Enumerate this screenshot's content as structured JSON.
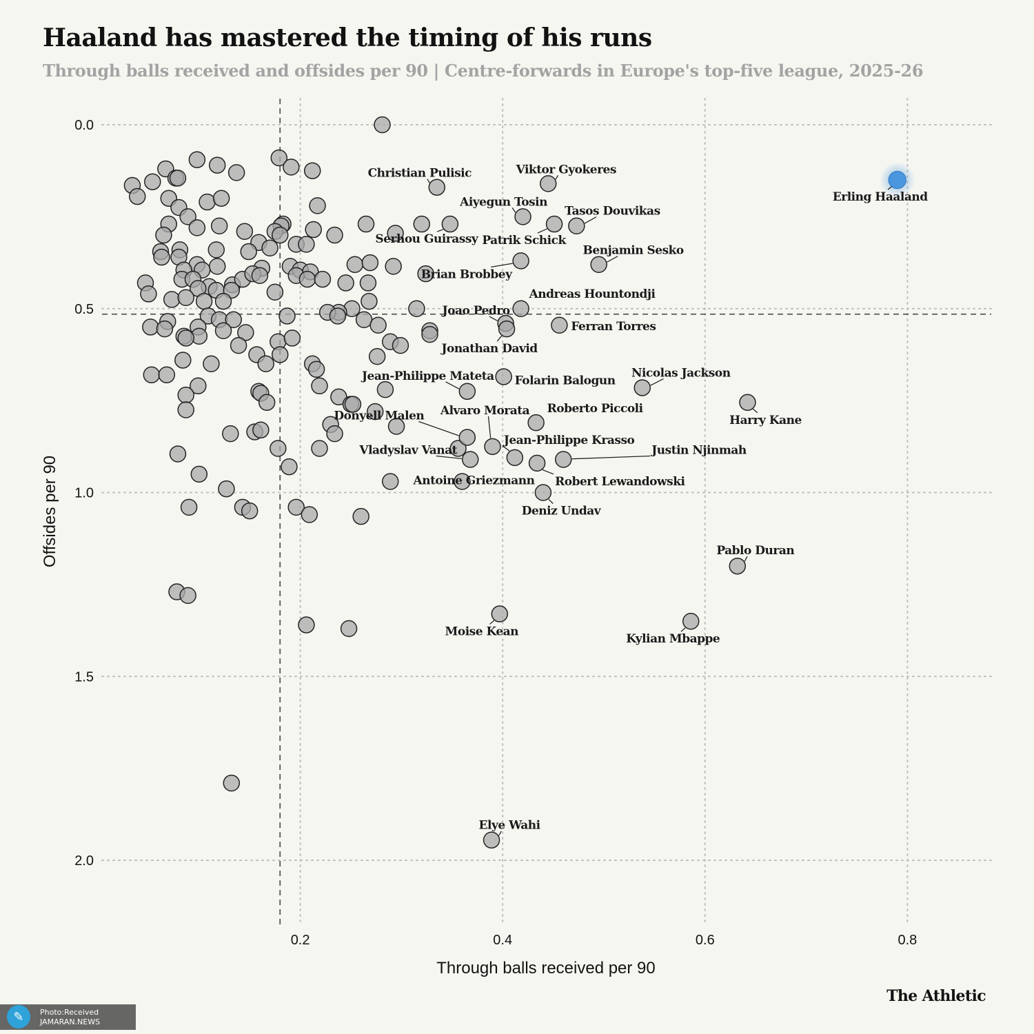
{
  "header": {
    "title": "Haaland has mastered the timing of his runs",
    "subtitle": "Through balls received and offsides per 90 | Centre-forwards in Europe's top-five league, 2025-26"
  },
  "footer": {
    "brand": "The Athletic",
    "credit_line1": "Photo:Received",
    "credit_line2": "JAMARAN.NEWS",
    "credit_icon": "jamaran-logo-icon"
  },
  "chart_data": {
    "type": "scatter",
    "title": "Haaland has mastered the timing of his runs",
    "subtitle": "Through balls received and offsides per 90 | Centre-forwards in Europe's top-five league, 2025-26",
    "xlabel": "Through balls received per 90",
    "ylabel": "Offsides per 90",
    "xlim": [
      0.0,
      0.88
    ],
    "ylim": [
      2.2,
      -0.07
    ],
    "y_inverted": true,
    "xticks": [
      0.2,
      0.4,
      0.6,
      0.8
    ],
    "yticks": [
      0.0,
      0.5,
      1.0,
      1.5,
      2.0
    ],
    "xtick_labels": [
      "0.2",
      "0.4",
      "0.6",
      "0.8"
    ],
    "ytick_labels": [
      "0.0",
      "0.5",
      "1.0",
      "1.5",
      "2.0"
    ],
    "grid": true,
    "reference_lines": {
      "x_average": 0.18,
      "y_average": 0.515
    },
    "colors": {
      "point": "#a9a9a9",
      "highlight": "#4a97e0",
      "point_stroke": "#222222",
      "background": "#f6f6f1"
    },
    "highlight": "Erling Haaland",
    "labeled_points": [
      {
        "name": "Erling Haaland",
        "x": 0.79,
        "y": 0.15
      },
      {
        "name": "Viktor Gyokeres",
        "x": 0.445,
        "y": 0.16
      },
      {
        "name": "Christian Pulisic",
        "x": 0.335,
        "y": 0.17
      },
      {
        "name": "Aiyegun Tosin",
        "x": 0.42,
        "y": 0.25
      },
      {
        "name": "Tasos Douvikas",
        "x": 0.473,
        "y": 0.275
      },
      {
        "name": "Serhou Guirassy",
        "x": 0.348,
        "y": 0.27
      },
      {
        "name": "Patrik Schick",
        "x": 0.451,
        "y": 0.27
      },
      {
        "name": "Benjamin Sesko",
        "x": 0.495,
        "y": 0.38
      },
      {
        "name": "Brian Brobbey",
        "x": 0.418,
        "y": 0.37
      },
      {
        "name": "Andreas Hountondji",
        "x": 0.418,
        "y": 0.5
      },
      {
        "name": "Joao Pedro",
        "x": 0.403,
        "y": 0.54
      },
      {
        "name": "Ferran Torres",
        "x": 0.456,
        "y": 0.545
      },
      {
        "name": "Jonathan David",
        "x": 0.404,
        "y": 0.555
      },
      {
        "name": "Nicolas Jackson",
        "x": 0.538,
        "y": 0.715
      },
      {
        "name": "Jean-Philippe Mateta",
        "x": 0.365,
        "y": 0.725
      },
      {
        "name": "Folarin Balogun",
        "x": 0.401,
        "y": 0.685
      },
      {
        "name": "Harry Kane",
        "x": 0.642,
        "y": 0.755
      },
      {
        "name": "Roberto Piccoli",
        "x": 0.433,
        "y": 0.81
      },
      {
        "name": "Alvaro Morata",
        "x": 0.39,
        "y": 0.875
      },
      {
        "name": "Donyell Malen",
        "x": 0.365,
        "y": 0.85
      },
      {
        "name": "Jean-Philippe Krasso",
        "x": 0.412,
        "y": 0.905
      },
      {
        "name": "Justin Njinmah",
        "x": 0.46,
        "y": 0.91
      },
      {
        "name": "Vladyslav Vanat",
        "x": 0.368,
        "y": 0.91
      },
      {
        "name": "Robert Lewandowski",
        "x": 0.434,
        "y": 0.92
      },
      {
        "name": "Antoine Griezmann",
        "x": 0.36,
        "y": 0.97
      },
      {
        "name": "Deniz Undav",
        "x": 0.44,
        "y": 1.0
      },
      {
        "name": "Pablo Duran",
        "x": 0.632,
        "y": 1.2
      },
      {
        "name": "Moise Kean",
        "x": 0.397,
        "y": 1.33
      },
      {
        "name": "Kylian Mbappe",
        "x": 0.586,
        "y": 1.35
      },
      {
        "name": "Elye Wahi",
        "x": 0.389,
        "y": 1.945
      }
    ],
    "unlabeled_points": [
      [
        0.281,
        0.0
      ],
      [
        0.179,
        0.09
      ],
      [
        0.191,
        0.115
      ],
      [
        0.212,
        0.125
      ],
      [
        0.098,
        0.095
      ],
      [
        0.118,
        0.11
      ],
      [
        0.137,
        0.13
      ],
      [
        0.067,
        0.12
      ],
      [
        0.077,
        0.145
      ],
      [
        0.079,
        0.145
      ],
      [
        0.054,
        0.155
      ],
      [
        0.034,
        0.165
      ],
      [
        0.039,
        0.195
      ],
      [
        0.07,
        0.2
      ],
      [
        0.108,
        0.21
      ],
      [
        0.122,
        0.2
      ],
      [
        0.217,
        0.22
      ],
      [
        0.08,
        0.225
      ],
      [
        0.089,
        0.25
      ],
      [
        0.07,
        0.27
      ],
      [
        0.098,
        0.28
      ],
      [
        0.12,
        0.275
      ],
      [
        0.183,
        0.27
      ],
      [
        0.181,
        0.275
      ],
      [
        0.065,
        0.3
      ],
      [
        0.145,
        0.29
      ],
      [
        0.175,
        0.29
      ],
      [
        0.18,
        0.3
      ],
      [
        0.196,
        0.325
      ],
      [
        0.213,
        0.285
      ],
      [
        0.234,
        0.3
      ],
      [
        0.159,
        0.32
      ],
      [
        0.062,
        0.345
      ],
      [
        0.081,
        0.34
      ],
      [
        0.117,
        0.34
      ],
      [
        0.149,
        0.345
      ],
      [
        0.17,
        0.335
      ],
      [
        0.206,
        0.325
      ],
      [
        0.265,
        0.27
      ],
      [
        0.294,
        0.295
      ],
      [
        0.32,
        0.27
      ],
      [
        0.08,
        0.36
      ],
      [
        0.063,
        0.36
      ],
      [
        0.098,
        0.38
      ],
      [
        0.118,
        0.385
      ],
      [
        0.103,
        0.395
      ],
      [
        0.085,
        0.395
      ],
      [
        0.162,
        0.39
      ],
      [
        0.19,
        0.385
      ],
      [
        0.2,
        0.395
      ],
      [
        0.21,
        0.4
      ],
      [
        0.254,
        0.38
      ],
      [
        0.269,
        0.375
      ],
      [
        0.292,
        0.385
      ],
      [
        0.324,
        0.405
      ],
      [
        0.047,
        0.43
      ],
      [
        0.05,
        0.46
      ],
      [
        0.083,
        0.42
      ],
      [
        0.094,
        0.42
      ],
      [
        0.11,
        0.44
      ],
      [
        0.133,
        0.435
      ],
      [
        0.143,
        0.42
      ],
      [
        0.153,
        0.405
      ],
      [
        0.16,
        0.41
      ],
      [
        0.196,
        0.41
      ],
      [
        0.207,
        0.42
      ],
      [
        0.222,
        0.42
      ],
      [
        0.245,
        0.43
      ],
      [
        0.267,
        0.43
      ],
      [
        0.099,
        0.445
      ],
      [
        0.117,
        0.45
      ],
      [
        0.132,
        0.45
      ],
      [
        0.175,
        0.455
      ],
      [
        0.073,
        0.475
      ],
      [
        0.087,
        0.47
      ],
      [
        0.105,
        0.48
      ],
      [
        0.124,
        0.48
      ],
      [
        0.251,
        0.5
      ],
      [
        0.268,
        0.48
      ],
      [
        0.238,
        0.51
      ],
      [
        0.227,
        0.51
      ],
      [
        0.315,
        0.5
      ],
      [
        0.109,
        0.52
      ],
      [
        0.12,
        0.53
      ],
      [
        0.134,
        0.53
      ],
      [
        0.187,
        0.52
      ],
      [
        0.237,
        0.52
      ],
      [
        0.263,
        0.53
      ],
      [
        0.069,
        0.535
      ],
      [
        0.052,
        0.55
      ],
      [
        0.066,
        0.555
      ],
      [
        0.099,
        0.55
      ],
      [
        0.124,
        0.56
      ],
      [
        0.146,
        0.565
      ],
      [
        0.277,
        0.545
      ],
      [
        0.328,
        0.56
      ],
      [
        0.085,
        0.575
      ],
      [
        0.1,
        0.575
      ],
      [
        0.087,
        0.58
      ],
      [
        0.178,
        0.59
      ],
      [
        0.192,
        0.58
      ],
      [
        0.139,
        0.6
      ],
      [
        0.157,
        0.625
      ],
      [
        0.18,
        0.625
      ],
      [
        0.289,
        0.59
      ],
      [
        0.299,
        0.6
      ],
      [
        0.328,
        0.57
      ],
      [
        0.276,
        0.63
      ],
      [
        0.084,
        0.64
      ],
      [
        0.112,
        0.65
      ],
      [
        0.166,
        0.65
      ],
      [
        0.212,
        0.65
      ],
      [
        0.216,
        0.665
      ],
      [
        0.053,
        0.68
      ],
      [
        0.068,
        0.68
      ],
      [
        0.099,
        0.71
      ],
      [
        0.159,
        0.725
      ],
      [
        0.161,
        0.73
      ],
      [
        0.219,
        0.71
      ],
      [
        0.238,
        0.74
      ],
      [
        0.284,
        0.72
      ],
      [
        0.087,
        0.735
      ],
      [
        0.167,
        0.755
      ],
      [
        0.25,
        0.76
      ],
      [
        0.252,
        0.76
      ],
      [
        0.274,
        0.78
      ],
      [
        0.087,
        0.775
      ],
      [
        0.23,
        0.815
      ],
      [
        0.295,
        0.82
      ],
      [
        0.131,
        0.84
      ],
      [
        0.155,
        0.835
      ],
      [
        0.161,
        0.83
      ],
      [
        0.234,
        0.84
      ],
      [
        0.079,
        0.895
      ],
      [
        0.178,
        0.88
      ],
      [
        0.219,
        0.88
      ],
      [
        0.356,
        0.88
      ],
      [
        0.189,
        0.93
      ],
      [
        0.1,
        0.95
      ],
      [
        0.127,
        0.99
      ],
      [
        0.289,
        0.97
      ],
      [
        0.09,
        1.04
      ],
      [
        0.143,
        1.04
      ],
      [
        0.15,
        1.05
      ],
      [
        0.196,
        1.04
      ],
      [
        0.209,
        1.06
      ],
      [
        0.26,
        1.065
      ],
      [
        0.078,
        1.27
      ],
      [
        0.089,
        1.28
      ],
      [
        0.206,
        1.36
      ],
      [
        0.248,
        1.37
      ],
      [
        0.132,
        1.79
      ]
    ]
  }
}
